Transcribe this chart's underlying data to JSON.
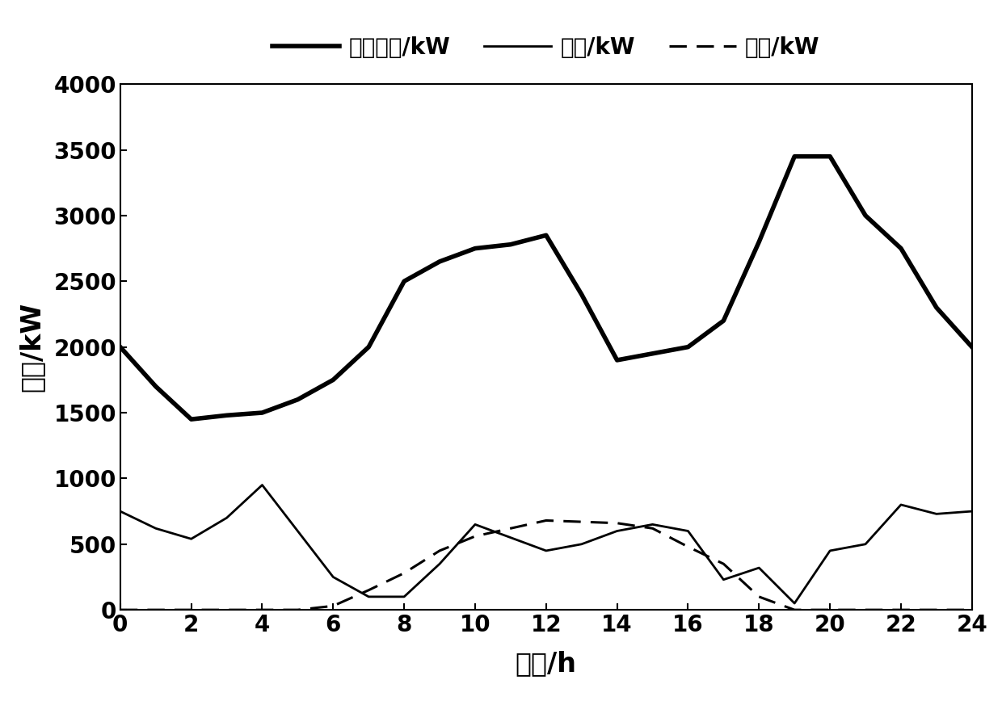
{
  "basic_load_x": [
    0,
    1,
    2,
    3,
    4,
    5,
    6,
    7,
    8,
    9,
    10,
    11,
    12,
    13,
    14,
    15,
    16,
    17,
    18,
    19,
    20,
    21,
    22,
    23,
    24
  ],
  "basic_load_y": [
    2000,
    1700,
    1450,
    1480,
    1500,
    1600,
    1750,
    2000,
    2500,
    2650,
    2750,
    2780,
    2850,
    2400,
    1900,
    1950,
    2000,
    2200,
    2800,
    3450,
    3450,
    3000,
    2750,
    2300,
    2000
  ],
  "wind_x": [
    0,
    1,
    2,
    3,
    4,
    5,
    6,
    7,
    8,
    9,
    10,
    11,
    12,
    13,
    14,
    15,
    16,
    17,
    18,
    19,
    20,
    21,
    22,
    23,
    24
  ],
  "wind_y": [
    750,
    620,
    540,
    700,
    950,
    600,
    250,
    100,
    100,
    350,
    650,
    550,
    450,
    500,
    600,
    650,
    600,
    230,
    320,
    50,
    450,
    500,
    800,
    730,
    750
  ],
  "pv_x": [
    0,
    1,
    2,
    3,
    4,
    5,
    6,
    7,
    8,
    9,
    10,
    11,
    12,
    13,
    14,
    15,
    16,
    17,
    18,
    19,
    20,
    21,
    22,
    23,
    24
  ],
  "pv_y": [
    0,
    0,
    0,
    0,
    0,
    0,
    30,
    150,
    280,
    450,
    560,
    620,
    680,
    670,
    660,
    620,
    480,
    350,
    100,
    0,
    0,
    0,
    0,
    0,
    0
  ],
  "xlabel": "时间/h",
  "ylabel": "功率/kW",
  "legend_basic": "基本负荷/kW",
  "legend_wind": "风电/kW",
  "legend_pv": "光伏/kW",
  "xlim": [
    0,
    24
  ],
  "ylim": [
    0,
    4000
  ],
  "yticks": [
    0,
    500,
    1000,
    1500,
    2000,
    2500,
    3000,
    3500,
    4000
  ],
  "xticks": [
    0,
    2,
    4,
    6,
    8,
    10,
    12,
    14,
    16,
    18,
    20,
    22,
    24
  ],
  "bg_color": "#ffffff",
  "line_color": "#000000",
  "basic_load_linewidth": 4.0,
  "wind_linewidth": 2.0,
  "pv_linewidth": 2.2,
  "tick_fontsize": 20,
  "label_fontsize": 24,
  "legend_fontsize": 20
}
